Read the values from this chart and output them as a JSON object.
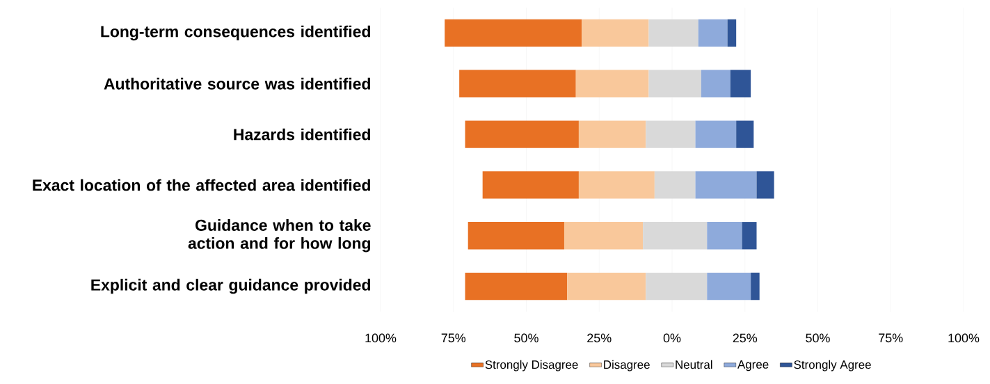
{
  "chart_data": {
    "type": "bar",
    "orientation": "horizontal",
    "categories": [
      "Long-term consequences identified",
      "Authoritative source was identified",
      "Hazards identified",
      "Exact location of the affected area identified",
      "Guidance when to take action and for how long",
      "Explicit and clear guidance provided"
    ],
    "series": [
      {
        "name": "Strongly Disagree",
        "color": "#e87124",
        "base": [
          -78,
          -73,
          -71,
          -65,
          -70,
          -71
        ],
        "values": [
          47,
          40,
          39,
          33,
          33,
          35
        ]
      },
      {
        "name": "Disagree",
        "color": "#f9c89b",
        "base": [
          -31,
          -33,
          -32,
          -32,
          -37,
          -36
        ],
        "values": [
          23,
          25,
          23,
          26,
          27,
          27
        ]
      },
      {
        "name": "Neutral",
        "color": "#d9d9d9",
        "base": [
          -8,
          -8,
          -9,
          -6,
          -10,
          -9
        ],
        "values": [
          17,
          18,
          17,
          14,
          22,
          21
        ]
      },
      {
        "name": "Agree",
        "color": "#8eaadb",
        "base": [
          9,
          10,
          8,
          8,
          12,
          12
        ],
        "values": [
          10,
          10,
          14,
          21,
          12,
          15
        ]
      },
      {
        "name": "Strongly Agree",
        "color": "#2f5597",
        "base": [
          19,
          20,
          22,
          29,
          24,
          27
        ],
        "values": [
          3,
          7,
          6,
          6,
          5,
          3
        ]
      }
    ],
    "xlim": [
      -100,
      100
    ],
    "xticks": [
      {
        "value": -100,
        "label": "100%"
      },
      {
        "value": -75,
        "label": "75%"
      },
      {
        "value": -50,
        "label": "50%"
      },
      {
        "value": -25,
        "label": "25%"
      },
      {
        "value": 0,
        "label": "0%"
      },
      {
        "value": 25,
        "label": "25%"
      },
      {
        "value": 50,
        "label": "50%"
      },
      {
        "value": 75,
        "label": "75%"
      },
      {
        "value": 100,
        "label": "100%"
      }
    ],
    "grid": "x",
    "legend": "bottom"
  }
}
